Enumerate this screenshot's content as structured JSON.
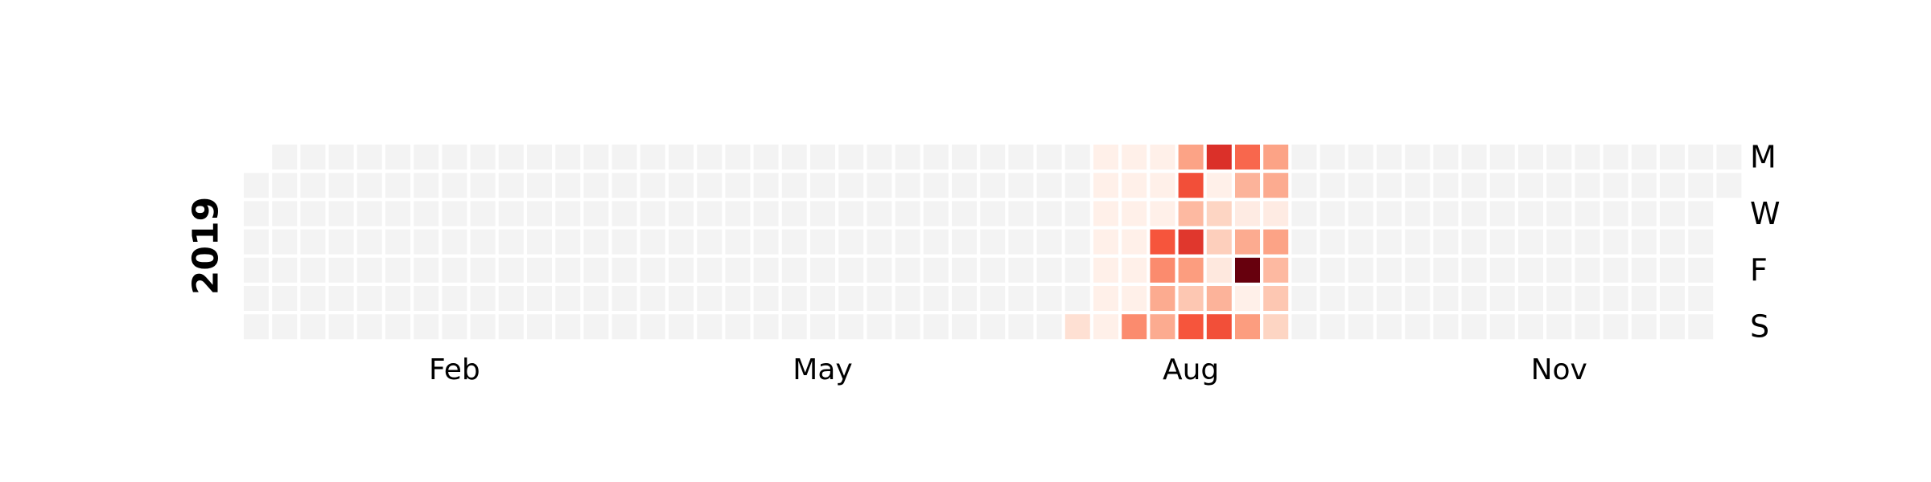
{
  "chart_data": {
    "type": "heatmap",
    "title": "",
    "year_label": "2019",
    "month_labels": [
      {
        "label": "Feb",
        "week": 7
      },
      {
        "label": "May",
        "week": 20
      },
      {
        "label": "Aug",
        "week": 33
      },
      {
        "label": "Nov",
        "week": 46
      }
    ],
    "day_labels": [
      {
        "label": "M",
        "day": 0
      },
      {
        "label": "W",
        "day": 2
      },
      {
        "label": "F",
        "day": 4
      },
      {
        "label": "S",
        "day": 6
      }
    ],
    "weeks": 53,
    "days_per_week": 7,
    "first_day_offset": 1,
    "year_days": 365,
    "empty_color": "#f3f3f3",
    "colormap": [
      "#fff5f0",
      "#fdd5c3",
      "#fc9d7f",
      "#f6553c",
      "#c9181d",
      "#67000d"
    ],
    "values": [
      {
        "week": 29,
        "day": 6,
        "value": 0.13
      },
      {
        "week": 30,
        "day": 0,
        "value": 0.03
      },
      {
        "week": 30,
        "day": 1,
        "value": 0.03
      },
      {
        "week": 30,
        "day": 2,
        "value": 0.03
      },
      {
        "week": 30,
        "day": 3,
        "value": 0.03
      },
      {
        "week": 30,
        "day": 4,
        "value": 0.03
      },
      {
        "week": 30,
        "day": 5,
        "value": 0.03
      },
      {
        "week": 30,
        "day": 6,
        "value": 0.03
      },
      {
        "week": 31,
        "day": 0,
        "value": 0.03
      },
      {
        "week": 31,
        "day": 1,
        "value": 0.03
      },
      {
        "week": 31,
        "day": 2,
        "value": 0.03
      },
      {
        "week": 31,
        "day": 3,
        "value": 0.03
      },
      {
        "week": 31,
        "day": 4,
        "value": 0.03
      },
      {
        "week": 31,
        "day": 5,
        "value": 0.03
      },
      {
        "week": 31,
        "day": 6,
        "value": 0.45
      },
      {
        "week": 32,
        "day": 0,
        "value": 0.03
      },
      {
        "week": 32,
        "day": 1,
        "value": 0.03
      },
      {
        "week": 32,
        "day": 2,
        "value": 0.03
      },
      {
        "week": 32,
        "day": 3,
        "value": 0.6
      },
      {
        "week": 32,
        "day": 4,
        "value": 0.45
      },
      {
        "week": 32,
        "day": 5,
        "value": 0.35
      },
      {
        "week": 32,
        "day": 6,
        "value": 0.35
      },
      {
        "week": 33,
        "day": 0,
        "value": 0.38
      },
      {
        "week": 33,
        "day": 1,
        "value": 0.62
      },
      {
        "week": 33,
        "day": 2,
        "value": 0.3
      },
      {
        "week": 33,
        "day": 3,
        "value": 0.7
      },
      {
        "week": 33,
        "day": 4,
        "value": 0.4
      },
      {
        "week": 33,
        "day": 5,
        "value": 0.25
      },
      {
        "week": 33,
        "day": 6,
        "value": 0.6
      },
      {
        "week": 34,
        "day": 0,
        "value": 0.72
      },
      {
        "week": 34,
        "day": 1,
        "value": 0.03
      },
      {
        "week": 34,
        "day": 2,
        "value": 0.2
      },
      {
        "week": 34,
        "day": 3,
        "value": 0.22
      },
      {
        "week": 34,
        "day": 4,
        "value": 0.08
      },
      {
        "week": 34,
        "day": 5,
        "value": 0.32
      },
      {
        "week": 34,
        "day": 6,
        "value": 0.62
      },
      {
        "week": 35,
        "day": 0,
        "value": 0.55
      },
      {
        "week": 35,
        "day": 1,
        "value": 0.32
      },
      {
        "week": 35,
        "day": 2,
        "value": 0.06
      },
      {
        "week": 35,
        "day": 3,
        "value": 0.35
      },
      {
        "week": 35,
        "day": 4,
        "value": 1.0
      },
      {
        "week": 35,
        "day": 5,
        "value": 0.03
      },
      {
        "week": 35,
        "day": 6,
        "value": 0.4
      },
      {
        "week": 36,
        "day": 0,
        "value": 0.38
      },
      {
        "week": 36,
        "day": 1,
        "value": 0.35
      },
      {
        "week": 36,
        "day": 2,
        "value": 0.06
      },
      {
        "week": 36,
        "day": 3,
        "value": 0.38
      },
      {
        "week": 36,
        "day": 4,
        "value": 0.3
      },
      {
        "week": 36,
        "day": 5,
        "value": 0.25
      },
      {
        "week": 36,
        "day": 6,
        "value": 0.2
      }
    ]
  }
}
